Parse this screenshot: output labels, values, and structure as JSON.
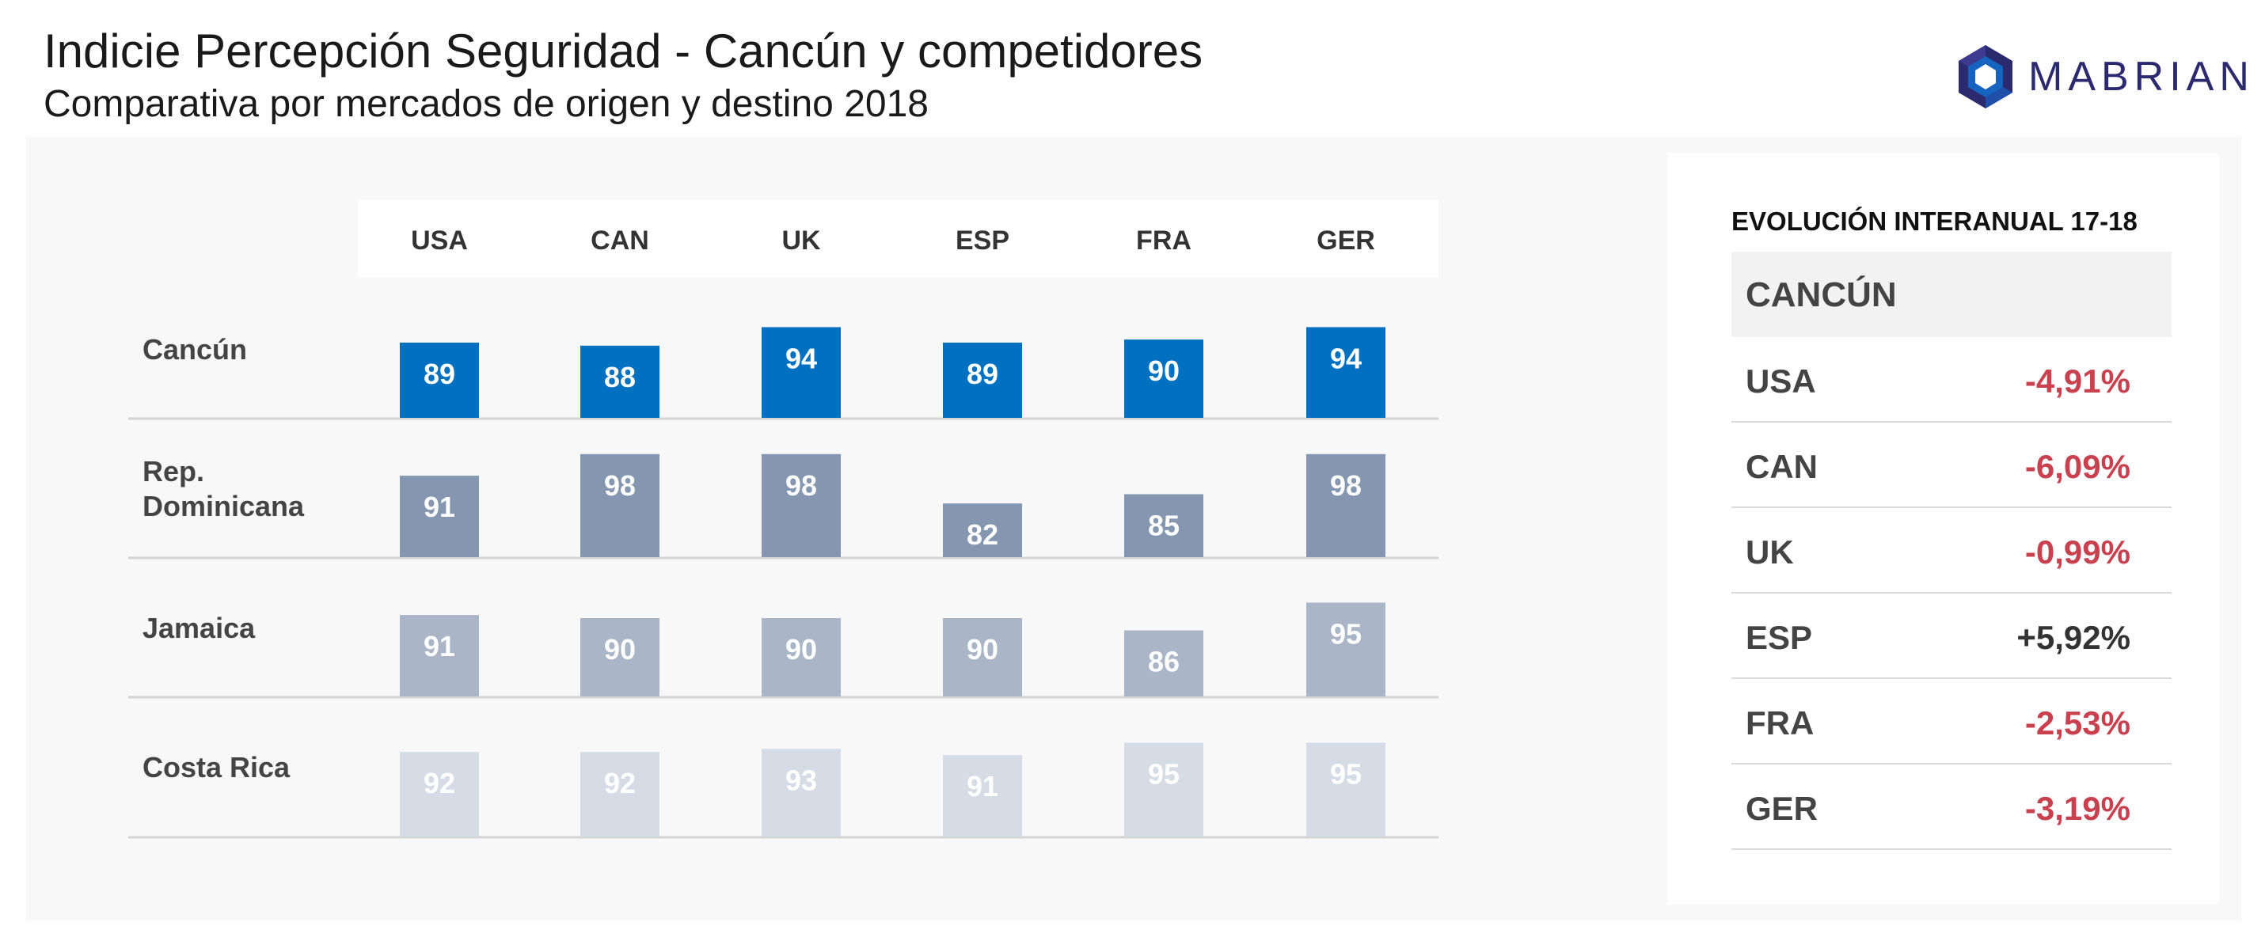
{
  "header": {
    "title": "Indicie Percepción Seguridad - Cancún y competidores",
    "subtitle": "Comparativa por mercados de origen y destino 2018"
  },
  "logo": {
    "text": "MABRIAN",
    "icon": "hexagon-logo-icon",
    "color": "#2c2a6e",
    "accent": "#1565c0"
  },
  "chart_data": {
    "type": "bar",
    "categories": [
      "USA",
      "CAN",
      "UK",
      "ESP",
      "FRA",
      "GER"
    ],
    "series": [
      {
        "name": "Cancún",
        "values": [
          89,
          88,
          94,
          89,
          90,
          94
        ],
        "color": "#0070c0",
        "label_color": "#ffffff"
      },
      {
        "name": "Rep. Dominicana",
        "values": [
          91,
          98,
          98,
          82,
          85,
          98
        ],
        "color": "#8596b0",
        "label_color": "#ffffff"
      },
      {
        "name": "Jamaica",
        "values": [
          91,
          90,
          90,
          90,
          86,
          95
        ],
        "color": "#aab5c8",
        "label_color": "#ffffff"
      },
      {
        "name": "Costa Rica",
        "values": [
          92,
          92,
          93,
          91,
          95,
          95
        ],
        "color": "#d6dce6",
        "label_color": "#ffffff"
      }
    ],
    "row_labels": [
      [
        "Cancún"
      ],
      [
        "Rep.",
        "Dominicana"
      ],
      [
        "Jamaica"
      ],
      [
        "Costa Rica"
      ]
    ]
  },
  "evolution": {
    "title": "EVOLUCIÓN INTERANUAL 17-18",
    "destination": "CANCÚN",
    "rows": [
      {
        "market": "USA",
        "value": "-4,91%",
        "sign": "neg"
      },
      {
        "market": "CAN",
        "value": "-6,09%",
        "sign": "neg"
      },
      {
        "market": "UK",
        "value": "-0,99%",
        "sign": "neg"
      },
      {
        "market": "ESP",
        "value": "+5,92%",
        "sign": "pos"
      },
      {
        "market": "FRA",
        "value": "-2,53%",
        "sign": "neg"
      },
      {
        "market": "GER",
        "value": "-3,19%",
        "sign": "neg"
      }
    ]
  }
}
